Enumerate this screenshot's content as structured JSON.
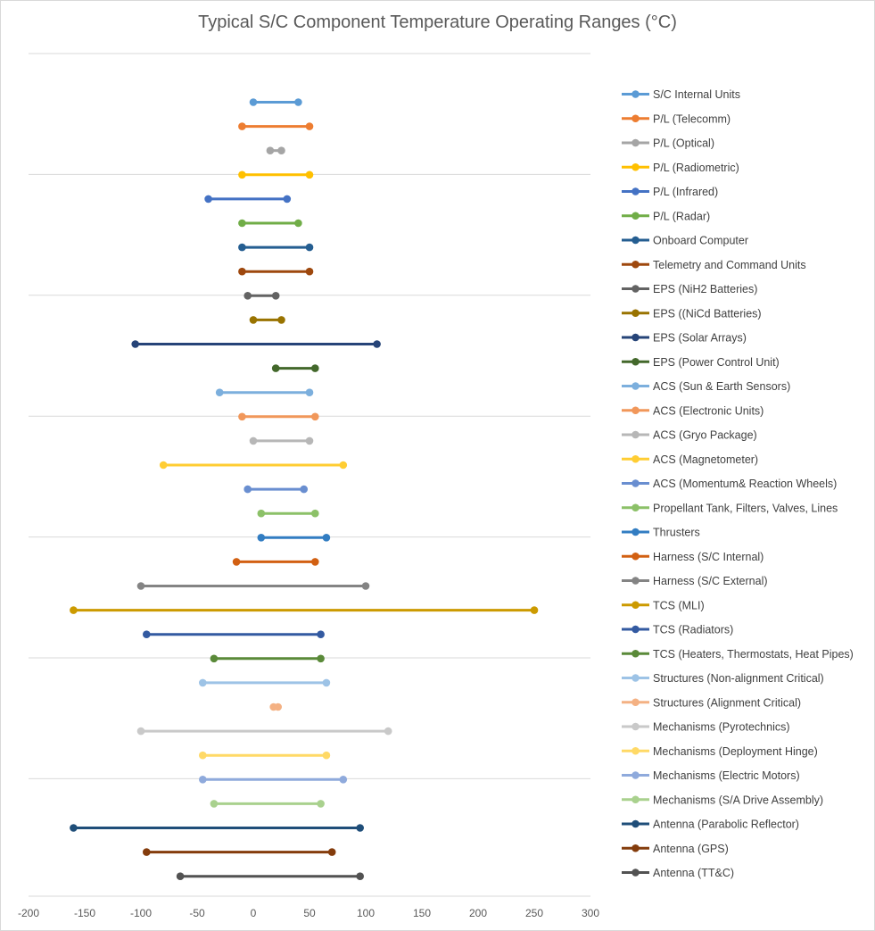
{
  "chart_data": {
    "type": "line",
    "title": "Typical S/C Component Temperature Operating Ranges (°C)",
    "xlabel": "",
    "ylabel": "",
    "xlim": [
      -200,
      300
    ],
    "x_ticks": [
      "-200",
      "-150",
      "-100",
      "-50",
      "0",
      "50",
      "100",
      "150",
      "200",
      "250",
      "300"
    ],
    "gridlines": "horizontal",
    "legend_position": "right",
    "series": [
      {
        "name": "S/C Internal Units",
        "min": 0,
        "max": 40,
        "color": "#5B9BD5"
      },
      {
        "name": "P/L (Telecomm)",
        "min": -10,
        "max": 50,
        "color": "#ED7D31"
      },
      {
        "name": "P/L (Optical)",
        "min": 15,
        "max": 25,
        "color": "#A5A5A5"
      },
      {
        "name": "P/L (Radiometric)",
        "min": -10,
        "max": 50,
        "color": "#FFC000"
      },
      {
        "name": "P/L (Infrared)",
        "min": -40,
        "max": 30,
        "color": "#4472C4"
      },
      {
        "name": "P/L (Radar)",
        "min": -10,
        "max": 40,
        "color": "#70AD47"
      },
      {
        "name": "Onboard Computer",
        "min": -10,
        "max": 50,
        "color": "#255E91"
      },
      {
        "name": "Telemetry and Command Units",
        "min": -10,
        "max": 50,
        "color": "#9E480E"
      },
      {
        "name": "EPS (NiH2 Batteries)",
        "min": -5,
        "max": 20,
        "color": "#636363"
      },
      {
        "name": "EPS ((NiCd Batteries)",
        "min": 0,
        "max": 25,
        "color": "#997300"
      },
      {
        "name": "EPS (Solar Arrays)",
        "min": -105,
        "max": 110,
        "color": "#264478"
      },
      {
        "name": "EPS (Power Control Unit)",
        "min": 20,
        "max": 55,
        "color": "#43682B"
      },
      {
        "name": "ACS (Sun & Earth Sensors)",
        "min": -30,
        "max": 50,
        "color": "#7CAFDD"
      },
      {
        "name": "ACS (Electronic Units)",
        "min": -10,
        "max": 55,
        "color": "#F1975A"
      },
      {
        "name": "ACS (Gryo Package)",
        "min": 0,
        "max": 50,
        "color": "#B7B7B7"
      },
      {
        "name": "ACS (Magnetometer)",
        "min": -80,
        "max": 80,
        "color": "#FFCD33"
      },
      {
        "name": "ACS (Momentum& Reaction Wheels)",
        "min": -5,
        "max": 45,
        "color": "#698ED0"
      },
      {
        "name": "Propellant Tank, Filters, Valves, Lines",
        "min": 7,
        "max": 55,
        "color": "#8CC168"
      },
      {
        "name": "Thrusters",
        "min": 7,
        "max": 65,
        "color": "#327DC2"
      },
      {
        "name": "Harness (S/C Internal)",
        "min": -15,
        "max": 55,
        "color": "#D26012"
      },
      {
        "name": "Harness (S/C External)",
        "min": -100,
        "max": 100,
        "color": "#848484"
      },
      {
        "name": "TCS (MLI)",
        "min": -160,
        "max": 250,
        "color": "#CC9A00"
      },
      {
        "name": "TCS (Radiators)",
        "min": -95,
        "max": 60,
        "color": "#335AA1"
      },
      {
        "name": "TCS (Heaters, Thermostats, Heat Pipes)",
        "min": -35,
        "max": 60,
        "color": "#5A8A39"
      },
      {
        "name": "Structures (Non-alignment Critical)",
        "min": -45,
        "max": 65,
        "color": "#9DC3E6"
      },
      {
        "name": "Structures (Alignment Critical)",
        "min": 18,
        "max": 22,
        "color": "#F4B183"
      },
      {
        "name": "Mechanisms (Pyrotechnics)",
        "min": -100,
        "max": 120,
        "color": "#C9C9C9"
      },
      {
        "name": "Mechanisms (Deployment Hinge)",
        "min": -45,
        "max": 65,
        "color": "#FFD966"
      },
      {
        "name": "Mechanisms (Electric Motors)",
        "min": -45,
        "max": 80,
        "color": "#8FAADC"
      },
      {
        "name": "Mechanisms (S/A Drive Assembly)",
        "min": -35,
        "max": 60,
        "color": "#A9D18E"
      },
      {
        "name": "Antenna (Parabolic Reflector)",
        "min": -160,
        "max": 95,
        "color": "#1F4E79"
      },
      {
        "name": "Antenna (GPS)",
        "min": -95,
        "max": 70,
        "color": "#843C0C"
      },
      {
        "name": "Antenna (TT&C)",
        "min": -65,
        "max": 95,
        "color": "#525252"
      }
    ]
  }
}
